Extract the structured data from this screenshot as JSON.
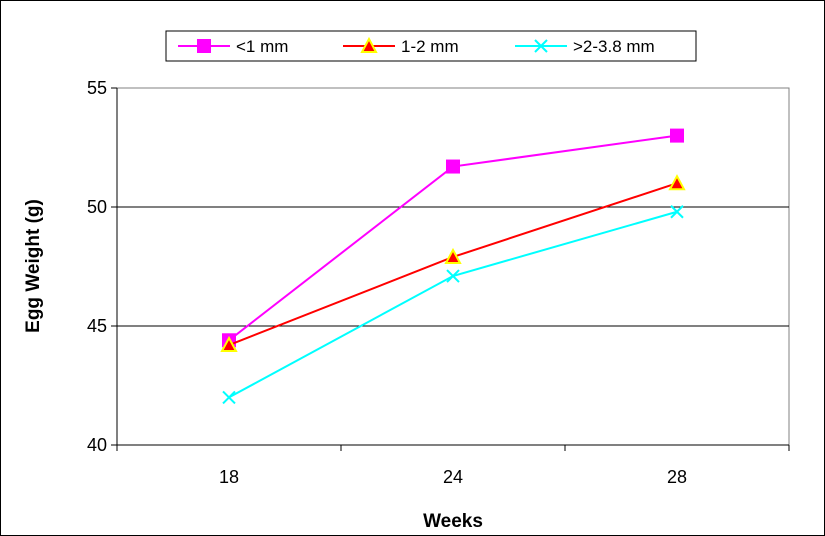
{
  "chart_data": {
    "type": "line",
    "title": "",
    "xlabel": "Weeks",
    "ylabel": "Egg Weight (g)",
    "categories": [
      "18",
      "24",
      "28"
    ],
    "ylim": [
      40,
      55
    ],
    "yticks": [
      "40",
      "45",
      "50",
      "55"
    ],
    "grid": "horizontal major gridlines",
    "legend_position": "top",
    "series": [
      {
        "name": "<1 mm",
        "values": [
          44.4,
          51.7,
          53.0
        ],
        "color": "#FF00FF",
        "marker": "square"
      },
      {
        "name": "1-2 mm",
        "values": [
          44.2,
          47.9,
          51.0
        ],
        "color": "#FF0000",
        "marker": "triangle"
      },
      {
        "name": ">2-3.8 mm",
        "values": [
          42.0,
          47.1,
          49.8
        ],
        "color": "#00FFFF",
        "marker": "x"
      }
    ]
  }
}
